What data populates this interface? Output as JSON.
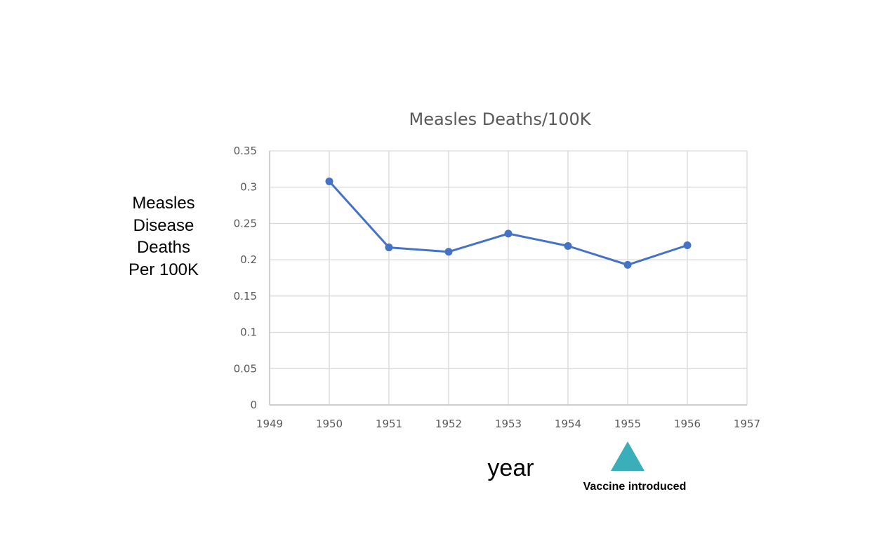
{
  "chart_data": {
    "type": "line",
    "title": "Measles Deaths/100K",
    "ylabel_lines": [
      "Measles",
      "Disease",
      "Deaths",
      "Per 100K"
    ],
    "xlabel": "year",
    "xlim": [
      1949,
      1957
    ],
    "ylim": [
      0,
      0.35
    ],
    "x_ticks": [
      "1949",
      "1950",
      "1951",
      "1952",
      "1953",
      "1954",
      "1955",
      "1956",
      "1957"
    ],
    "y_ticks": [
      "0",
      "0.05",
      "0.1",
      "0.15",
      "0.2",
      "0.25",
      "0.3",
      "0.35"
    ],
    "grid": true,
    "series": [
      {
        "name": "Measles Deaths/100K",
        "x": [
          1950,
          1951,
          1952,
          1953,
          1954,
          1955,
          1956
        ],
        "values": [
          0.308,
          0.217,
          0.211,
          0.236,
          0.219,
          0.193,
          0.22
        ],
        "color": "#4472c4"
      }
    ],
    "annotation": {
      "text": "Vaccine introduced",
      "x": 1955,
      "marker": "triangle",
      "color": "#3aafb9"
    }
  }
}
